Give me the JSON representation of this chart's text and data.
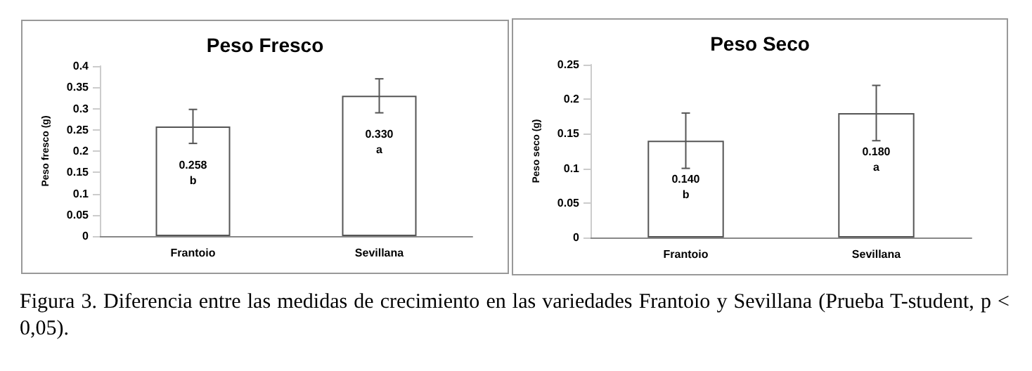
{
  "chart_data": [
    {
      "type": "bar",
      "title": "Peso Fresco",
      "ylabel": "Peso fresco (g)",
      "categories": [
        "Frantoio",
        "Sevillana"
      ],
      "values": [
        0.258,
        0.33
      ],
      "errors": [
        0.04,
        0.04
      ],
      "color": "#ffffff",
      "value_labels": [
        "0.258\nb",
        "0.330\na"
      ],
      "ylim": [
        0,
        0.4
      ],
      "yticks": [
        0,
        0.05,
        0.1,
        0.15,
        0.2,
        0.25,
        0.3,
        0.35,
        0.4
      ],
      "grid": false,
      "annotations": [
        "Figura 3. Diferencia entre las medidas de crecimiento en las variedades Frantoio y Sevillana (Prueba T-student, p < 0,05)."
      ]
    },
    {
      "type": "bar",
      "title": "Peso Seco",
      "ylabel": "Peso seco (g)",
      "categories": [
        "Frantoio",
        "Sevillana"
      ],
      "values": [
        0.14,
        0.18
      ],
      "errors": [
        0.04,
        0.04
      ],
      "color": "#ffffff",
      "value_labels": [
        "0.140\nb",
        "0.180\na"
      ],
      "ylim": [
        0,
        0.25
      ],
      "yticks": [
        0,
        0.05,
        0.1,
        0.15,
        0.2,
        0.25
      ],
      "grid": false
    }
  ]
}
